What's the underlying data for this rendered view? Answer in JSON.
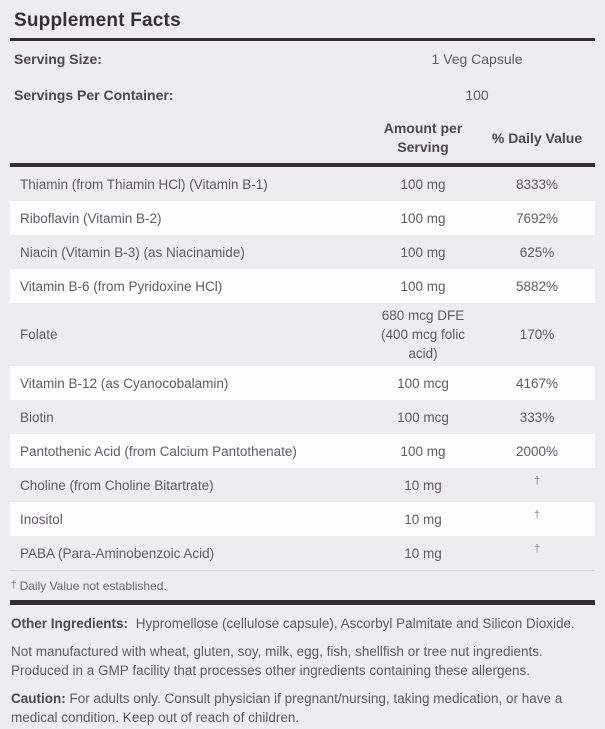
{
  "title": "Supplement Facts",
  "serving": {
    "size_label": "Serving Size:",
    "size_value": "1 Veg Capsule",
    "count_label": "Servings Per Container:",
    "count_value": "100"
  },
  "table": {
    "col_amount": "Amount per Serving",
    "col_dv": "% Daily Value",
    "dagger": "†",
    "rows": [
      {
        "name": "Thiamin (from Thiamin HCl) (Vitamin B-1)",
        "amount": "100 mg",
        "dv": "8333%"
      },
      {
        "name": "Riboflavin (Vitamin B-2)",
        "amount": "100 mg",
        "dv": "7692%"
      },
      {
        "name": "Niacin (Vitamin B-3) (as Niacinamide)",
        "amount": "100 mg",
        "dv": "625%"
      },
      {
        "name": "Vitamin B-6 (from Pyridoxine HCl)",
        "amount": "100 mg",
        "dv": "5882%"
      },
      {
        "name": "Folate",
        "amount": "680 mcg DFE (400 mcg folic acid)",
        "dv": "170%"
      },
      {
        "name": "Vitamin B-12 (as Cyanocobalamin)",
        "amount": "100 mcg",
        "dv": "4167%"
      },
      {
        "name": "Biotin",
        "amount": "100 mcg",
        "dv": "333%"
      },
      {
        "name": "Pantothenic Acid (from Calcium Pantothenate)",
        "amount": "100 mg",
        "dv": "2000%"
      },
      {
        "name": "Choline (from Choline Bitartrate)",
        "amount": "10 mg",
        "dv": "†"
      },
      {
        "name": "Inositol",
        "amount": "10 mg",
        "dv": "†"
      },
      {
        "name": "PABA (Para-Aminobenzoic Acid)",
        "amount": "10 mg",
        "dv": "†"
      }
    ],
    "footnote_dagger": "†",
    "footnote_text": "Daily Value not established."
  },
  "notes": {
    "other_ingredients_label": "Other Ingredients:",
    "other_ingredients": "Hypromellose (cellulose capsule), Ascorbyl Palmitate and Silicon Dioxide.",
    "allergen": "Not manufactured with wheat, gluten, soy, milk, egg, fish, shellfish or tree nut ingredients. Produced in a GMP facility that processes other ingredients containing these allergens.",
    "caution_label": "Caution:",
    "caution": "For adults only. Consult physician if pregnant/nursing, taking medication, or have a medical condition. Keep out of reach of children."
  },
  "colors": {
    "bg": "#edecee",
    "stripe": "#fdfdfd",
    "rule": "#342e30",
    "heading": "#363036",
    "label": "#4e4850",
    "text": "#615b65"
  }
}
